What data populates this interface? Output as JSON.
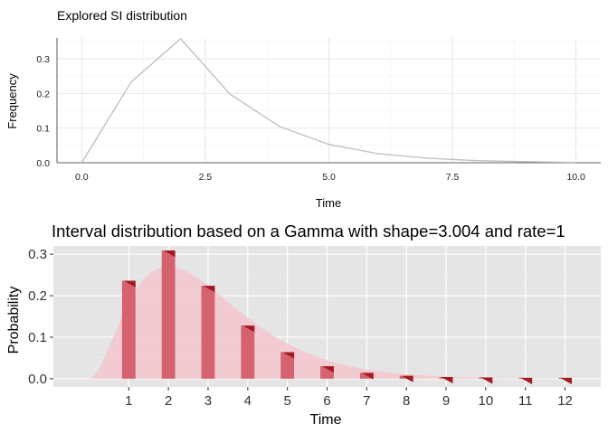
{
  "chart_data": [
    {
      "type": "line",
      "title": "Explored SI distribution",
      "xlabel": "Time",
      "ylabel": "Frequency",
      "xlim": [
        -0.5,
        10.5
      ],
      "ylim": [
        0,
        0.36
      ],
      "x_ticks": [
        "0.0",
        "2.5",
        "5.0",
        "7.5",
        "10.0"
      ],
      "x_tick_values": [
        0,
        2.5,
        5,
        7.5,
        10
      ],
      "y_ticks": [
        "0.0",
        "0.1",
        "0.2",
        "0.3"
      ],
      "y_tick_values": [
        0,
        0.1,
        0.2,
        0.3
      ],
      "grid": true,
      "x": [
        0,
        1,
        2,
        3,
        4,
        5,
        6,
        7,
        8,
        9,
        10
      ],
      "y": [
        0.0,
        0.233,
        0.358,
        0.198,
        0.105,
        0.053,
        0.026,
        0.013,
        0.006,
        0.003,
        0.001
      ],
      "line_color": "#bdbdbd"
    },
    {
      "type": "bar",
      "title": "Interval distribution based on a Gamma with shape=3.004 and rate=1",
      "xlabel": "Time",
      "ylabel": "Probability",
      "xlim": [
        -0.9,
        12.9
      ],
      "ylim": [
        -0.02,
        0.32
      ],
      "x_ticks": [
        "1",
        "2",
        "3",
        "4",
        "5",
        "6",
        "7",
        "8",
        "9",
        "10",
        "11",
        "12"
      ],
      "y_ticks": [
        "0.0",
        "0.1",
        "0.2",
        "0.3"
      ],
      "y_tick_values": [
        0,
        0.1,
        0.2,
        0.3
      ],
      "grid": true,
      "background": "#e5e5e5",
      "categories": [
        1,
        2,
        3,
        4,
        5,
        6,
        7,
        8,
        9,
        10,
        11,
        12
      ],
      "values": [
        0.236,
        0.309,
        0.224,
        0.128,
        0.064,
        0.03,
        0.014,
        0.007,
        0.004,
        0.003,
        0.002,
        0.002
      ],
      "bar_color": "#d4636f",
      "corner_color": "#a31b22",
      "density_fill": "#f4c7cf",
      "density": {
        "shape": 3.004,
        "rate": 1
      }
    }
  ]
}
